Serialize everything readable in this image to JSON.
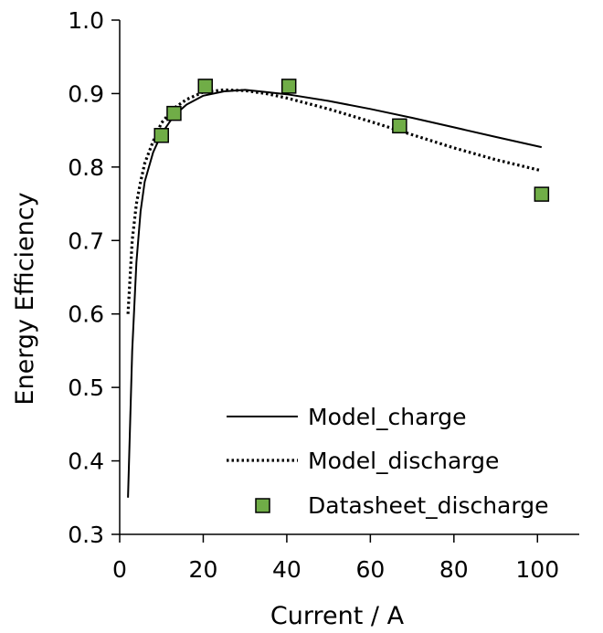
{
  "chart_data": {
    "type": "line",
    "title": "",
    "xlabel": "Current / A",
    "ylabel": "Energy Efficiency",
    "xlim": [
      0,
      110
    ],
    "ylim": [
      0.3,
      1.0
    ],
    "xticks": [
      0,
      20,
      40,
      60,
      80,
      100
    ],
    "yticks": [
      0.3,
      0.4,
      0.5,
      0.6,
      0.7,
      0.8,
      0.9,
      1.0
    ],
    "xtick_labels": [
      "0",
      "20",
      "40",
      "60",
      "80",
      "100"
    ],
    "ytick_labels": [
      "0.3",
      "0.4",
      "0.5",
      "0.6",
      "0.7",
      "0.8",
      "0.9",
      "1.0"
    ],
    "grid": false,
    "legend_position": "bottom-right",
    "series": [
      {
        "name": "Model_charge",
        "style": "solid-line",
        "color": "#000000",
        "x": [
          2,
          3,
          4,
          5,
          6,
          8,
          10,
          13,
          16,
          20,
          25,
          30,
          35,
          40,
          50,
          60,
          70,
          80,
          90,
          101
        ],
        "y": [
          0.35,
          0.55,
          0.67,
          0.74,
          0.78,
          0.82,
          0.845,
          0.87,
          0.885,
          0.897,
          0.903,
          0.905,
          0.902,
          0.899,
          0.89,
          0.879,
          0.867,
          0.854,
          0.841,
          0.827
        ]
      },
      {
        "name": "Model_discharge",
        "style": "dotted-line",
        "color": "#000000",
        "x": [
          2,
          3,
          4,
          5,
          6,
          8,
          10,
          13,
          16,
          20,
          25,
          30,
          35,
          40,
          50,
          60,
          70,
          80,
          90,
          101
        ],
        "y": [
          0.6,
          0.7,
          0.75,
          0.78,
          0.805,
          0.835,
          0.86,
          0.88,
          0.892,
          0.902,
          0.905,
          0.904,
          0.9,
          0.894,
          0.879,
          0.862,
          0.844,
          0.826,
          0.81,
          0.795
        ]
      },
      {
        "name": "Datasheet_discharge",
        "style": "square-markers",
        "color": "#70ad47",
        "x": [
          10,
          13,
          20.5,
          40.5,
          67,
          101
        ],
        "y": [
          0.843,
          0.873,
          0.91,
          0.91,
          0.856,
          0.763
        ]
      }
    ]
  }
}
